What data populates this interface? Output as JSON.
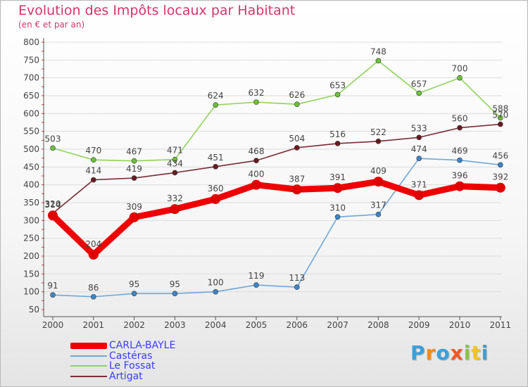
{
  "title": "Evolution des Impôts locaux par Habitant",
  "subtitle": "(en € et par an)",
  "chart_data": {
    "type": "line",
    "title": "Evolution des Impôts locaux par Habitant",
    "subtitle": "(en € et par an)",
    "xlabel": "",
    "ylabel": "",
    "ylim": [
      50,
      800
    ],
    "yticks": [
      50,
      100,
      150,
      200,
      250,
      300,
      350,
      400,
      450,
      500,
      550,
      600,
      650,
      700,
      750,
      800
    ],
    "x": [
      "2000",
      "2001",
      "2002",
      "2003",
      "2004",
      "2005",
      "2006",
      "2007",
      "2008",
      "2009",
      "2010",
      "2011"
    ],
    "grid": "horizontal",
    "legend_position": "bottom-left",
    "series": [
      {
        "name": "Le Fossat",
        "color": "#8fd45a",
        "marker_color": "#6cc23a",
        "emphasis": false,
        "values": [
          503,
          470,
          467,
          471,
          624,
          632,
          626,
          653,
          748,
          657,
          700,
          588
        ]
      },
      {
        "name": "Artigat",
        "color": "#7a2e36",
        "marker_color": "#6a1a22",
        "emphasis": false,
        "values": [
          320,
          414,
          419,
          434,
          451,
          468,
          504,
          516,
          522,
          533,
          560,
          570
        ]
      },
      {
        "name": "Castéras",
        "color": "#6fa7d8",
        "marker_color": "#3d86c8",
        "emphasis": false,
        "values": [
          91,
          86,
          95,
          95,
          100,
          119,
          113,
          310,
          317,
          474,
          469,
          456
        ]
      },
      {
        "name": "CARLA-BAYLE",
        "color": "#ee0000",
        "marker_color": "#e00000",
        "emphasis": true,
        "values": [
          314,
          204,
          309,
          332,
          360,
          400,
          387,
          391,
          409,
          371,
          396,
          392
        ]
      }
    ]
  },
  "legend": [
    {
      "label": "CARLA-BAYLE",
      "color": "#ee0000",
      "style": "thick"
    },
    {
      "label": "Castéras",
      "color": "#6fa7d8",
      "style": "thin"
    },
    {
      "label": "Le Fossat",
      "color": "#8fd45a",
      "style": "thin"
    },
    {
      "label": "Artigat",
      "color": "#7a2e36",
      "style": "thin"
    }
  ],
  "brand": {
    "letters": [
      "P",
      "r",
      "o",
      "x",
      "i",
      "t",
      "i"
    ],
    "colors": [
      "#3aa0dc",
      "#f28c1e",
      "#3aa0dc",
      "#ef5a24",
      "#8cc63f",
      "#f5c518",
      "#3aa0dc"
    ]
  },
  "colors": {
    "title": "#d6336c",
    "legend_text": "#3b3bff",
    "axis": "#555555",
    "grid": "#dddddd",
    "tick_minor": "#e0403a"
  }
}
